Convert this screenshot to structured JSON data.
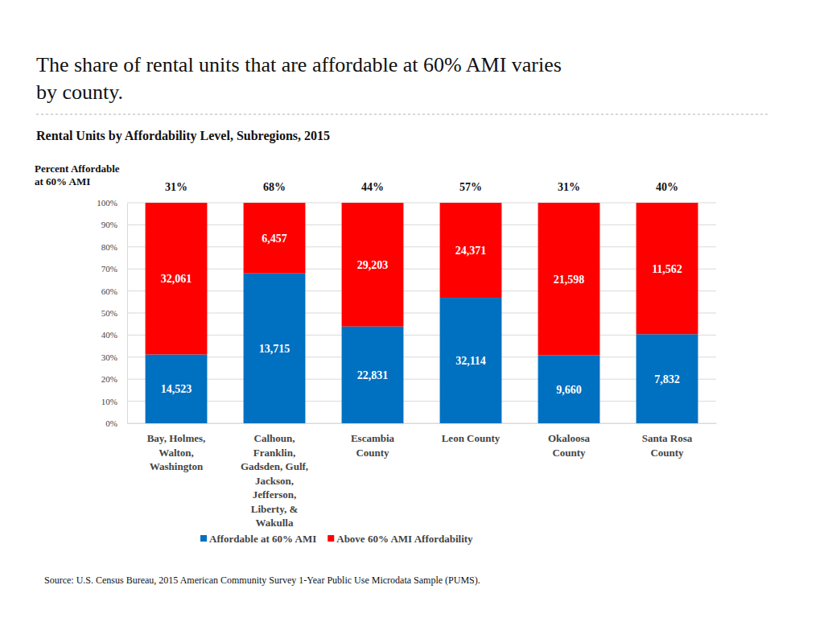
{
  "chart_data": {
    "type": "bar",
    "stacked": true,
    "title": "The share of rental units that are affordable at 60% AMI varies\nby county.",
    "subtitle": "Rental Units by Affordability Level, Subregions, 2015",
    "percent_affordable_title": "Percent Affordable\nat 60% AMI",
    "percent_affordable_labels": [
      "31%",
      "68%",
      "44%",
      "57%",
      "31%",
      "40%"
    ],
    "categories": [
      "Bay, Holmes,\nWalton,\nWashington",
      "Calhoun,\nFranklin,\nGadsden, Gulf,\nJackson,\nJefferson,\nLiberty, &\nWakulla",
      "Escambia\nCounty",
      "Leon County",
      "Okaloosa\nCounty",
      "Santa Rosa\nCounty"
    ],
    "series": [
      {
        "name": "Affordable at 60% AMI",
        "color": "#0070C0",
        "values": [
          31.2,
          68.0,
          43.9,
          56.9,
          30.9,
          40.4
        ],
        "counts": [
          "14,523",
          "13,715",
          "22,831",
          "32,114",
          "9,660",
          "7,832"
        ]
      },
      {
        "name": "Above 60% AMI Affordability",
        "color": "#FF0000",
        "values": [
          68.8,
          32.0,
          56.1,
          43.1,
          69.1,
          59.6
        ],
        "counts": [
          "32,061",
          "6,457",
          "29,203",
          "24,371",
          "21,598",
          "11,562"
        ]
      }
    ],
    "ylim": [
      0,
      100
    ],
    "yticks": [
      {
        "value": 0,
        "label": "0%"
      },
      {
        "value": 10,
        "label": "10%"
      },
      {
        "value": 20,
        "label": "20%"
      },
      {
        "value": 30,
        "label": "30%"
      },
      {
        "value": 40,
        "label": "40%"
      },
      {
        "value": 50,
        "label": "50%"
      },
      {
        "value": 60,
        "label": "60%"
      },
      {
        "value": 70,
        "label": "70%"
      },
      {
        "value": 80,
        "label": "80%"
      },
      {
        "value": 90,
        "label": "90%"
      },
      {
        "value": 100,
        "label": "100%"
      }
    ],
    "grid": true,
    "legend": "bottom",
    "source": "Source: U.S. Census Bureau, 2015 American Community Survey 1-Year Public Use Microdata Sample (PUMS)."
  }
}
